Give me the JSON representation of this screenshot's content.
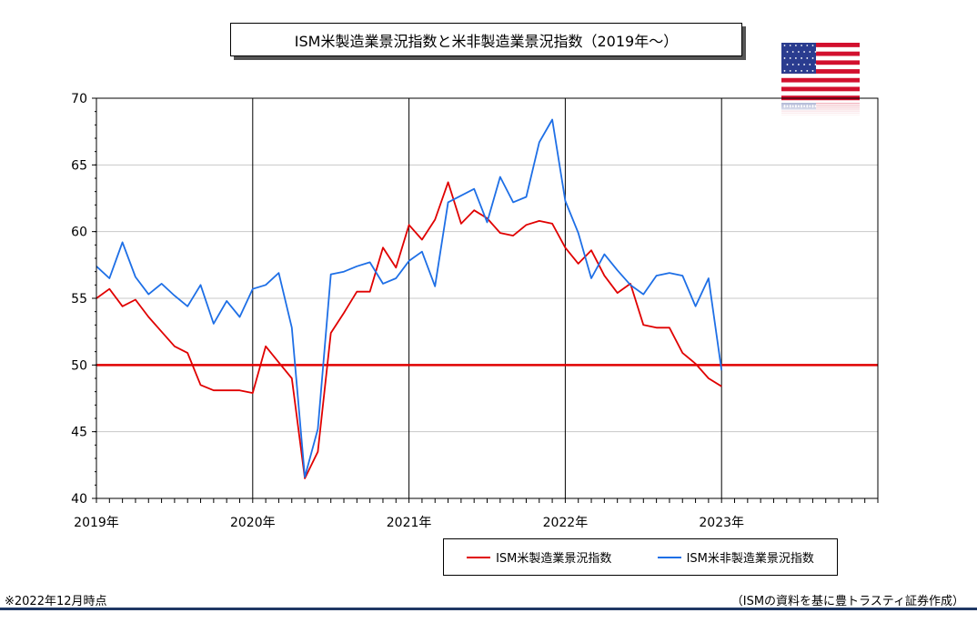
{
  "chart_data": {
    "type": "line",
    "title": "ISM米製造業景況指数と米非製造業景況指数（2019年～）",
    "xlabel": "",
    "ylabel": "",
    "ylim": [
      40,
      70
    ],
    "yticks": [
      "40",
      "45",
      "50",
      "55",
      "60",
      "65",
      "70"
    ],
    "xticks": [
      "2019年",
      "2020年",
      "2021年",
      "2022年",
      "2023年"
    ],
    "x_range": [
      "2019-01",
      "2023-12"
    ],
    "reference_line": {
      "y": 50,
      "color": "#e00000"
    },
    "grid": true,
    "legend_position": "bottom-right",
    "series": [
      {
        "name": "ISM米製造業景況指数",
        "color": "#e00000",
        "values": [
          55.0,
          55.7,
          54.4,
          54.9,
          53.6,
          52.5,
          51.4,
          50.9,
          48.5,
          48.1,
          48.1,
          48.1,
          47.9,
          51.4,
          50.2,
          49.0,
          41.5,
          43.5,
          52.4,
          53.9,
          55.5,
          55.5,
          58.8,
          57.3,
          60.5,
          59.4,
          60.9,
          63.7,
          60.6,
          61.6,
          61.0,
          59.9,
          59.7,
          60.5,
          60.8,
          60.6,
          58.8,
          57.6,
          58.6,
          56.7,
          55.4,
          56.1,
          53.0,
          52.8,
          52.8,
          50.9,
          50.1,
          49.0,
          48.4
        ]
      },
      {
        "name": "ISM米非製造業景況指数",
        "color": "#1e6fe6",
        "values": [
          57.4,
          56.5,
          59.2,
          56.6,
          55.3,
          56.1,
          55.2,
          54.4,
          56.0,
          53.1,
          54.8,
          53.6,
          55.7,
          56.0,
          56.9,
          52.8,
          41.6,
          45.2,
          56.8,
          57.0,
          57.4,
          57.7,
          56.1,
          56.5,
          57.8,
          58.5,
          55.9,
          62.2,
          62.7,
          63.2,
          60.7,
          64.1,
          62.2,
          62.6,
          66.7,
          68.4,
          62.3,
          59.9,
          56.5,
          58.3,
          57.1,
          56.0,
          55.3,
          56.7,
          56.9,
          56.7,
          54.4,
          56.5,
          49.6
        ]
      }
    ]
  },
  "flag": {
    "icon": "us-flag-icon"
  },
  "footnote": "※2022年12月時点",
  "source": "（ISMの資料を基に豊トラスティ証券作成）"
}
